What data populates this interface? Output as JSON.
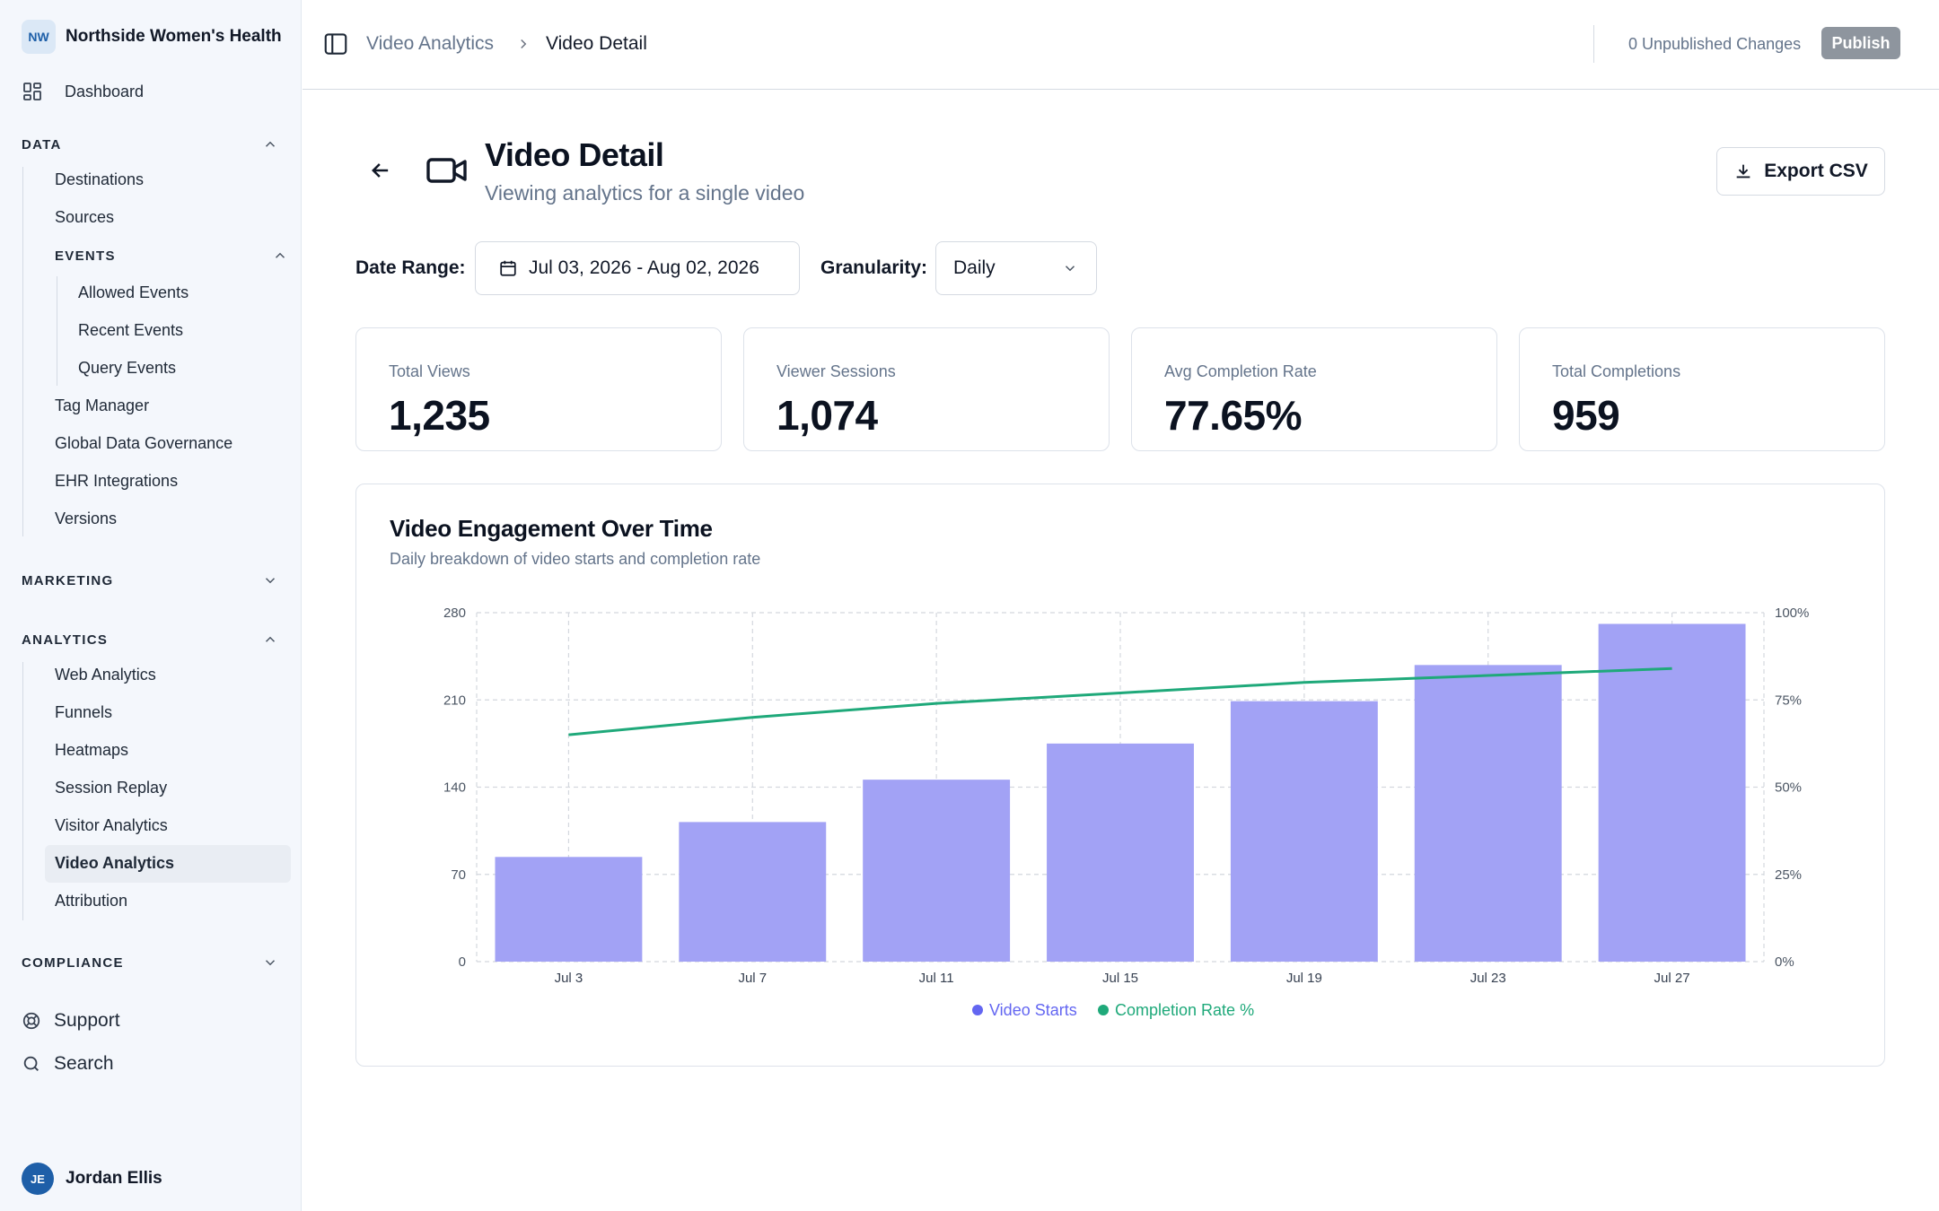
{
  "sidebar": {
    "org_initials": "NW",
    "org_name": "Northside Women's Health",
    "dashboard": "Dashboard",
    "data_section": "DATA",
    "data_items": [
      "Destinations",
      "Sources"
    ],
    "events_section": "EVENTS",
    "events_items": [
      "Allowed Events",
      "Recent Events",
      "Query Events"
    ],
    "data_items_after": [
      "Tag Manager",
      "Global Data Governance",
      "EHR Integrations",
      "Versions"
    ],
    "marketing_section": "MARKETING",
    "analytics_section": "ANALYTICS",
    "analytics_items": [
      "Web Analytics",
      "Funnels",
      "Heatmaps",
      "Session Replay",
      "Visitor Analytics",
      "Video Analytics",
      "Attribution"
    ],
    "compliance_section": "COMPLIANCE",
    "support": "Support",
    "search": "Search",
    "user_initials": "JE",
    "user_name": "Jordan Ellis"
  },
  "topbar": {
    "breadcrumb_parent": "Video Analytics",
    "breadcrumb_current": "Video Detail",
    "unpublished": "0 Unpublished Changes",
    "publish": "Publish"
  },
  "header": {
    "title": "Video Detail",
    "subtitle": "Viewing analytics for a single video",
    "export": "Export CSV"
  },
  "filters": {
    "date_label": "Date Range:",
    "date_value": "Jul 03, 2026 - Aug 02, 2026",
    "granularity_label": "Granularity:",
    "granularity_value": "Daily"
  },
  "kpis": [
    {
      "label": "Total Views",
      "value": "1,235"
    },
    {
      "label": "Viewer Sessions",
      "value": "1,074"
    },
    {
      "label": "Avg Completion Rate",
      "value": "77.65%"
    },
    {
      "label": "Total Completions",
      "value": "959"
    }
  ],
  "chart_data": {
    "type": "bar",
    "title": "Video Engagement Over Time",
    "subtitle": "Daily breakdown of video starts and completion rate",
    "categories": [
      "Jul 3",
      "Jul 7",
      "Jul 11",
      "Jul 15",
      "Jul 19",
      "Jul 23",
      "Jul 27"
    ],
    "series": [
      {
        "name": "Video Starts",
        "type": "bar",
        "axis": "left",
        "color": "#a2a2f5",
        "values": [
          84,
          112,
          146,
          175,
          209,
          238,
          271
        ]
      },
      {
        "name": "Completion Rate %",
        "type": "line",
        "axis": "right",
        "color": "#1fa97a",
        "values": [
          65,
          70,
          74,
          77,
          80,
          82,
          84
        ]
      }
    ],
    "ylim_left": [
      0,
      280
    ],
    "yticks_left": [
      "0",
      "70",
      "140",
      "210",
      "280"
    ],
    "ylim_right": [
      0,
      100
    ],
    "yticks_right": [
      "0%",
      "25%",
      "50%",
      "75%",
      "100%"
    ],
    "grid": true,
    "legend": "bottom-center",
    "legend_colors": {
      "Video Starts": "#6366f1",
      "Completion Rate %": "#1fa97a"
    }
  }
}
